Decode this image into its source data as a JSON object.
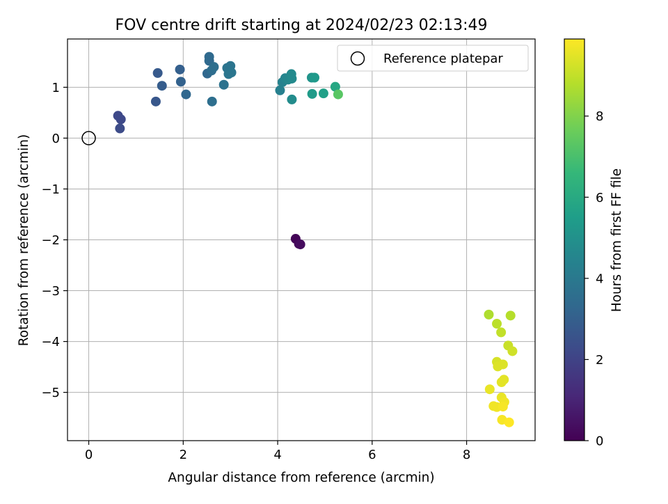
{
  "chart_data": {
    "type": "scatter",
    "title": "FOV centre drift starting at 2024/02/23 02:13:49",
    "xlabel": "Angular distance from reference (arcmin)",
    "ylabel": "Rotation from reference (arcmin)",
    "colorbar_label": "Hours from first FF file",
    "colormap": "viridis",
    "xlim": [
      -0.45,
      9.45
    ],
    "ylim": [
      -5.95,
      1.95
    ],
    "clim": [
      0,
      9.9
    ],
    "x_ticks": [
      0,
      2,
      4,
      6,
      8
    ],
    "y_ticks": [
      -5,
      -4,
      -3,
      -2,
      -1,
      0,
      1
    ],
    "colorbar_ticks": [
      0,
      2,
      4,
      6,
      8
    ],
    "grid": true,
    "legend_position": "upper-right",
    "reference": {
      "label": "Reference platepar",
      "x": 0,
      "y": 0
    },
    "points": [
      {
        "x": 4.38,
        "y": -1.98,
        "c": 0.1
      },
      {
        "x": 4.45,
        "y": -2.08,
        "c": 0.2
      },
      {
        "x": 4.48,
        "y": -2.09,
        "c": 0.3
      },
      {
        "x": 0.62,
        "y": 0.44,
        "c": 2.2
      },
      {
        "x": 0.68,
        "y": 0.37,
        "c": 2.2
      },
      {
        "x": 0.66,
        "y": 0.19,
        "c": 2.3
      },
      {
        "x": 1.42,
        "y": 0.72,
        "c": 2.7
      },
      {
        "x": 1.46,
        "y": 1.28,
        "c": 2.8
      },
      {
        "x": 1.55,
        "y": 1.03,
        "c": 2.9
      },
      {
        "x": 1.93,
        "y": 1.35,
        "c": 3.0
      },
      {
        "x": 1.95,
        "y": 1.11,
        "c": 3.1
      },
      {
        "x": 2.06,
        "y": 0.86,
        "c": 3.3
      },
      {
        "x": 2.51,
        "y": 1.27,
        "c": 3.3
      },
      {
        "x": 2.55,
        "y": 1.52,
        "c": 3.4
      },
      {
        "x": 2.55,
        "y": 1.6,
        "c": 3.4
      },
      {
        "x": 2.6,
        "y": 1.33,
        "c": 3.5
      },
      {
        "x": 2.65,
        "y": 1.4,
        "c": 3.6
      },
      {
        "x": 2.61,
        "y": 0.72,
        "c": 3.6
      },
      {
        "x": 2.86,
        "y": 1.05,
        "c": 3.7
      },
      {
        "x": 2.93,
        "y": 1.38,
        "c": 3.8
      },
      {
        "x": 3.0,
        "y": 1.42,
        "c": 3.8
      },
      {
        "x": 2.96,
        "y": 1.26,
        "c": 3.9
      },
      {
        "x": 3.02,
        "y": 1.29,
        "c": 3.9
      },
      {
        "x": 4.05,
        "y": 0.94,
        "c": 4.3
      },
      {
        "x": 4.1,
        "y": 1.1,
        "c": 4.4
      },
      {
        "x": 4.16,
        "y": 1.18,
        "c": 4.5
      },
      {
        "x": 4.22,
        "y": 1.15,
        "c": 4.6
      },
      {
        "x": 4.29,
        "y": 1.26,
        "c": 4.7
      },
      {
        "x": 4.3,
        "y": 1.17,
        "c": 4.7
      },
      {
        "x": 4.3,
        "y": 0.76,
        "c": 4.8
      },
      {
        "x": 4.72,
        "y": 1.19,
        "c": 5.1
      },
      {
        "x": 4.78,
        "y": 1.19,
        "c": 5.3
      },
      {
        "x": 4.73,
        "y": 0.87,
        "c": 5.4
      },
      {
        "x": 4.97,
        "y": 0.88,
        "c": 5.6
      },
      {
        "x": 5.22,
        "y": 1.01,
        "c": 5.9
      },
      {
        "x": 5.28,
        "y": 0.86,
        "c": 7.3
      },
      {
        "x": 8.47,
        "y": -3.47,
        "c": 8.7
      },
      {
        "x": 8.93,
        "y": -3.49,
        "c": 8.8
      },
      {
        "x": 8.64,
        "y": -3.65,
        "c": 8.9
      },
      {
        "x": 8.73,
        "y": -3.82,
        "c": 9.0
      },
      {
        "x": 8.88,
        "y": -4.08,
        "c": 9.1
      },
      {
        "x": 8.97,
        "y": -4.19,
        "c": 9.2
      },
      {
        "x": 8.64,
        "y": -4.4,
        "c": 9.3
      },
      {
        "x": 8.68,
        "y": -4.44,
        "c": 9.3
      },
      {
        "x": 8.77,
        "y": -4.45,
        "c": 9.4
      },
      {
        "x": 8.66,
        "y": -4.49,
        "c": 9.4
      },
      {
        "x": 8.79,
        "y": -4.75,
        "c": 9.5
      },
      {
        "x": 8.74,
        "y": -4.8,
        "c": 9.5
      },
      {
        "x": 8.49,
        "y": -4.94,
        "c": 9.6
      },
      {
        "x": 8.74,
        "y": -5.1,
        "c": 9.6
      },
      {
        "x": 8.8,
        "y": -5.19,
        "c": 9.7
      },
      {
        "x": 8.57,
        "y": -5.27,
        "c": 9.7
      },
      {
        "x": 8.64,
        "y": -5.29,
        "c": 9.7
      },
      {
        "x": 8.77,
        "y": -5.28,
        "c": 9.8
      },
      {
        "x": 8.75,
        "y": -5.54,
        "c": 9.8
      },
      {
        "x": 8.9,
        "y": -5.59,
        "c": 9.9
      }
    ]
  }
}
